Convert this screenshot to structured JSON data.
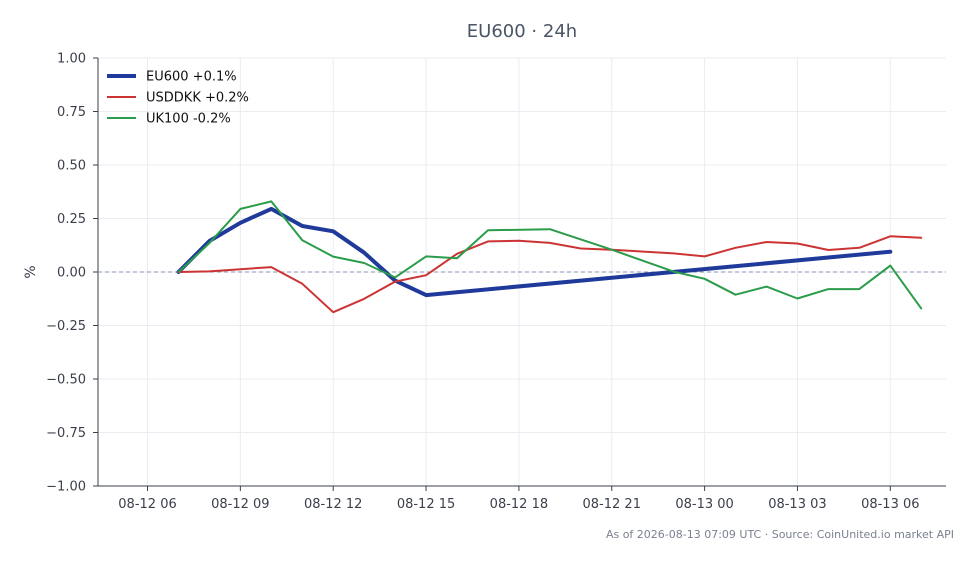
{
  "chart_data": {
    "type": "line",
    "title": "EU600 · 24h",
    "xlabel": "",
    "ylabel": "%",
    "x_ticks": [
      "08-12 06",
      "08-12 09",
      "08-12 12",
      "08-12 15",
      "08-12 18",
      "08-12 21",
      "08-13 00",
      "08-13 03",
      "08-13 06"
    ],
    "y_ticks": [
      "1.00",
      "0.75",
      "0.50",
      "0.25",
      "0.00",
      "−0.25",
      "−0.50",
      "−0.75",
      "−1.00"
    ],
    "ylim": [
      -1.0,
      1.0
    ],
    "xlim_hours": [
      -1.6,
      25.8
    ],
    "x_unit": "hours since 08-12 06:00",
    "grid": true,
    "legend_position": "top-left",
    "zero_line": true,
    "series": [
      {
        "name": "EU600 +0.1%",
        "color": "#1f3a9a",
        "width": 4,
        "points": [
          [
            1,
            0.0
          ],
          [
            2,
            0.145
          ],
          [
            3,
            0.23
          ],
          [
            4,
            0.295
          ],
          [
            5,
            0.215
          ],
          [
            6,
            0.19
          ],
          [
            7,
            0.09
          ],
          [
            8,
            -0.04
          ],
          [
            9,
            -0.108
          ],
          [
            24,
            0.095
          ]
        ]
      },
      {
        "name": "USDDKK +0.2%",
        "color": "#cc3333",
        "width": 2,
        "points": [
          [
            1,
            0.0
          ],
          [
            2,
            0.003
          ],
          [
            3,
            0.013
          ],
          [
            4,
            0.023
          ],
          [
            5,
            -0.055
          ],
          [
            6,
            -0.188
          ],
          [
            7,
            -0.125
          ],
          [
            8,
            -0.045
          ],
          [
            9,
            -0.015
          ],
          [
            10,
            0.085
          ],
          [
            11,
            0.143
          ],
          [
            12,
            0.146
          ],
          [
            13,
            0.136
          ],
          [
            14,
            0.11
          ],
          [
            15,
            0.104
          ],
          [
            17,
            0.087
          ],
          [
            18,
            0.073
          ],
          [
            19,
            0.113
          ],
          [
            20,
            0.14
          ],
          [
            21,
            0.133
          ],
          [
            22,
            0.103
          ],
          [
            23,
            0.113
          ],
          [
            24,
            0.167
          ],
          [
            25,
            0.16
          ]
        ]
      },
      {
        "name": "UK100 -0.2%",
        "color": "#2a9c4a",
        "width": 2,
        "points": [
          [
            1,
            0.0
          ],
          [
            2,
            0.135
          ],
          [
            3,
            0.295
          ],
          [
            4,
            0.33
          ],
          [
            5,
            0.148
          ],
          [
            6,
            0.072
          ],
          [
            7,
            0.042
          ],
          [
            8,
            -0.025
          ],
          [
            9,
            0.073
          ],
          [
            10,
            0.064
          ],
          [
            11,
            0.195
          ],
          [
            13,
            0.2
          ],
          [
            15,
            0.104
          ],
          [
            17,
            0.002
          ],
          [
            18,
            -0.032
          ],
          [
            19,
            -0.106
          ],
          [
            20,
            -0.068
          ],
          [
            21,
            -0.124
          ],
          [
            22,
            -0.08
          ],
          [
            23,
            -0.08
          ],
          [
            24,
            0.03
          ],
          [
            25,
            -0.17
          ]
        ]
      }
    ]
  },
  "footer": {
    "text": "As of 2026-08-13 07:09 UTC · Source: CoinUnited.io market API"
  }
}
